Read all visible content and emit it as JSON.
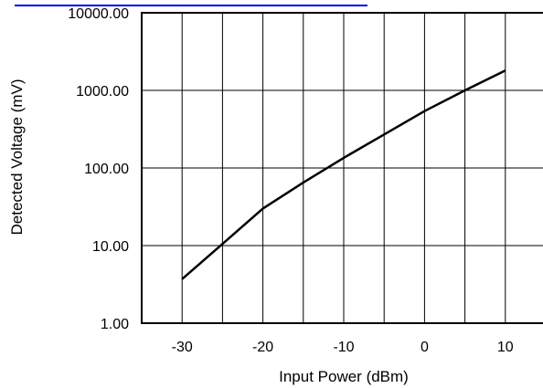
{
  "chart_data": {
    "type": "line",
    "title": "",
    "xlabel": "Input Power (dBm)",
    "ylabel": "Detected Voltage (mV)",
    "x_ticks": [
      "-30",
      "-20",
      "-10",
      "0",
      "10"
    ],
    "y_ticks": [
      "1.00",
      "10.00",
      "100.00",
      "1000.00",
      "10000.00"
    ],
    "xlim": [
      -35,
      15
    ],
    "ylim": [
      1,
      10000
    ],
    "y_scale": "log",
    "grid": true,
    "colors": {
      "line": "#000000",
      "grid": "#000000",
      "header_rule": "#0000ee"
    },
    "series": [
      {
        "x": [
          -30,
          -25,
          -20,
          -15,
          -10,
          -5,
          0,
          5,
          10
        ],
        "y": [
          3.7,
          10.5,
          30,
          65,
          135,
          270,
          540,
          1000,
          1800
        ]
      }
    ]
  }
}
